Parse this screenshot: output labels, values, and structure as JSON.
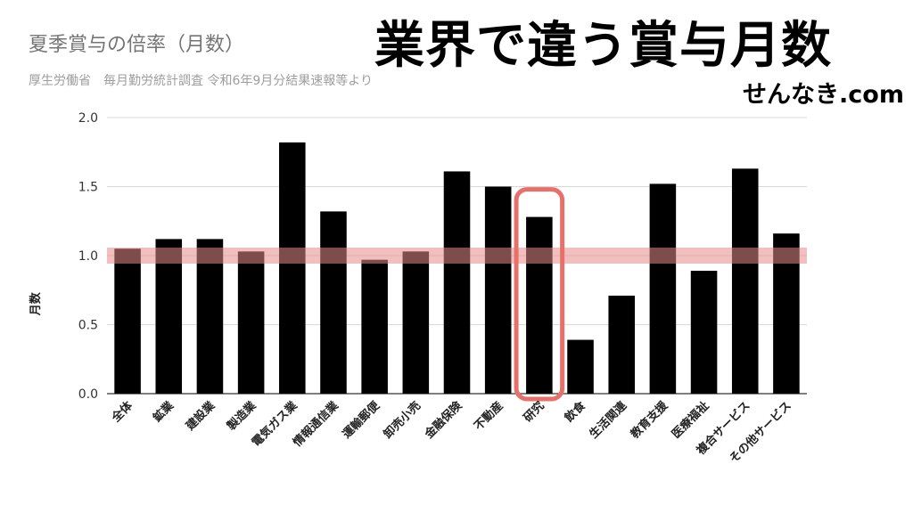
{
  "header": {
    "chart_title": "夏季賞与の倍率（月数）",
    "chart_subtitle": "厚生労働省　毎月勤労統計調査 令和6年9月分結果速報等より",
    "overlay_title": "業界で違う賞与月数",
    "site_name": "せんなき.com"
  },
  "chart_data": {
    "type": "bar",
    "title": "夏季賞与の倍率（月数）",
    "subtitle": "厚生労働省　毎月勤労統計調査 令和6年9月分結果速報等より",
    "xlabel": "",
    "ylabel": "月数",
    "ylim": [
      0,
      2.0
    ],
    "yticks": [
      0.0,
      0.5,
      1.0,
      1.5,
      2.0
    ],
    "ytick_labels": [
      "0.0",
      "0.5",
      "1.0",
      "1.5",
      "2.0"
    ],
    "grid": true,
    "categories": [
      "全体",
      "鉱業",
      "建設業",
      "製造業",
      "電気ガス業",
      "情報通信業",
      "運輸郵便",
      "卸売小売",
      "金融保険",
      "不動産",
      "研究",
      "飲食",
      "生活関連",
      "教育支援",
      "医療福祉",
      "複合サービス",
      "その他サービス"
    ],
    "values": [
      1.05,
      1.12,
      1.12,
      1.03,
      1.82,
      1.32,
      0.97,
      1.03,
      1.61,
      1.5,
      1.28,
      0.39,
      0.71,
      1.52,
      0.89,
      1.63,
      1.16
    ],
    "bar_color": "#000000",
    "reference_band": {
      "value": 1.0,
      "color": "#e88a8a"
    },
    "highlight": {
      "category": "研究",
      "color": "#e8706a"
    }
  }
}
